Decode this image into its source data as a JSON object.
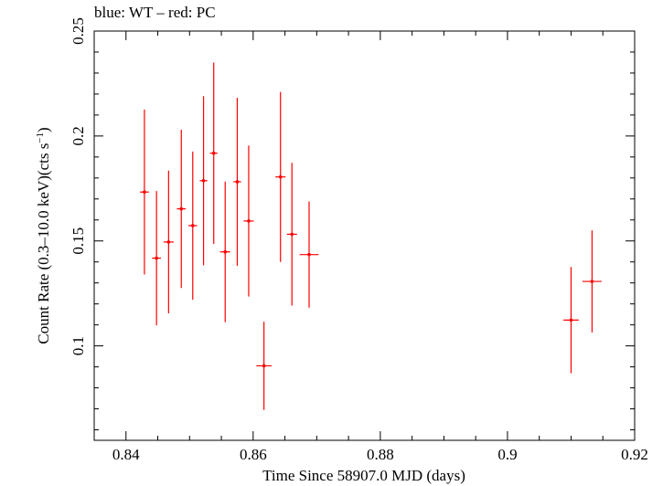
{
  "chart_data": {
    "type": "scatter",
    "title": "blue: WT – red: PC",
    "xlabel": "Time Since 58907.0 MJD (days)",
    "ylabel_prefix": "Count Rate (0.3–10.0 keV)(cts s",
    "ylabel_sup": "−1",
    "ylabel_suffix": ")",
    "xlim": [
      0.835,
      0.92
    ],
    "ylim": [
      0.055,
      0.25
    ],
    "x_ticks": [
      0.84,
      0.86,
      0.88,
      0.9,
      0.92
    ],
    "x_tick_labels": [
      "0.84",
      "0.86",
      "0.88",
      "0.9",
      "0.92"
    ],
    "y_ticks": [
      0.1,
      0.15,
      0.2,
      0.25
    ],
    "y_tick_labels": [
      "0.1",
      "0.15",
      "0.2",
      "0.25"
    ],
    "grid": false,
    "color": "#ff0000",
    "series": [
      {
        "points": [
          {
            "x": 0.8429,
            "xerr": 0.0007,
            "y": 0.1733,
            "yerr": 0.0393
          },
          {
            "x": 0.8448,
            "xerr": 0.0007,
            "y": 0.1418,
            "yerr": 0.032
          },
          {
            "x": 0.8467,
            "xerr": 0.0008,
            "y": 0.1495,
            "yerr": 0.034
          },
          {
            "x": 0.8487,
            "xerr": 0.0007,
            "y": 0.1653,
            "yerr": 0.0377
          },
          {
            "x": 0.8505,
            "xerr": 0.0007,
            "y": 0.1573,
            "yerr": 0.0353
          },
          {
            "x": 0.8522,
            "xerr": 0.0006,
            "y": 0.1787,
            "yerr": 0.0403
          },
          {
            "x": 0.8538,
            "xerr": 0.0006,
            "y": 0.1918,
            "yerr": 0.0432
          },
          {
            "x": 0.8556,
            "xerr": 0.0008,
            "y": 0.1448,
            "yerr": 0.0335
          },
          {
            "x": 0.8575,
            "xerr": 0.0006,
            "y": 0.1782,
            "yerr": 0.04
          },
          {
            "x": 0.8593,
            "xerr": 0.0008,
            "y": 0.1595,
            "yerr": 0.036
          },
          {
            "x": 0.8617,
            "xerr": 0.0012,
            "y": 0.0905,
            "yerr": 0.021
          },
          {
            "x": 0.8643,
            "xerr": 0.0008,
            "y": 0.1805,
            "yerr": 0.0405
          },
          {
            "x": 0.8661,
            "xerr": 0.0008,
            "y": 0.1532,
            "yerr": 0.034
          },
          {
            "x": 0.8688,
            "xerr": 0.0015,
            "y": 0.1435,
            "yerr": 0.0253
          },
          {
            "x": 0.91,
            "xerr": 0.0012,
            "y": 0.1123,
            "yerr": 0.0253
          },
          {
            "x": 0.9133,
            "xerr": 0.0015,
            "y": 0.1307,
            "yerr": 0.0243
          }
        ]
      }
    ]
  }
}
